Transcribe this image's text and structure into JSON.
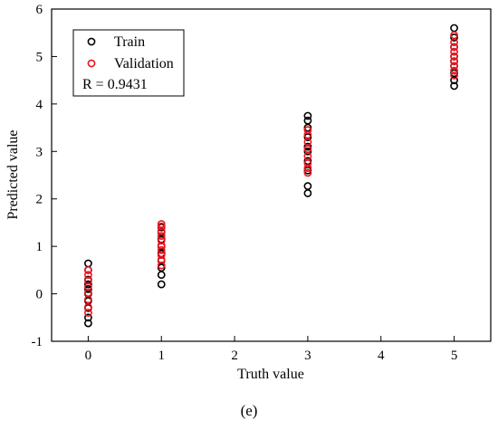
{
  "caption": "(e)",
  "chart_data": {
    "type": "scatter",
    "xlabel": "Truth value",
    "ylabel": "Predicted value",
    "xlim": [
      -0.5,
      5.5
    ],
    "ylim": [
      -1,
      6
    ],
    "xticks": [
      0,
      1,
      2,
      3,
      4,
      5
    ],
    "yticks": [
      -1,
      0,
      1,
      2,
      3,
      4,
      5,
      6
    ],
    "grid": false,
    "legend_position": "top-left",
    "annotation": "R = 0.9431",
    "series": [
      {
        "name": "Train",
        "color": "#000000",
        "marker": "open-circle",
        "points": [
          [
            0,
            -0.62
          ],
          [
            0,
            -0.5
          ],
          [
            0,
            -0.3
          ],
          [
            0,
            -0.15
          ],
          [
            0,
            0.0
          ],
          [
            0,
            0.1
          ],
          [
            0,
            0.2
          ],
          [
            0,
            0.3
          ],
          [
            0,
            0.5
          ],
          [
            0,
            0.64
          ],
          [
            1,
            0.2
          ],
          [
            1,
            0.4
          ],
          [
            1,
            0.55
          ],
          [
            1,
            0.7
          ],
          [
            1,
            0.85
          ],
          [
            1,
            1.0
          ],
          [
            1,
            1.15
          ],
          [
            1,
            1.3
          ],
          [
            1,
            1.4
          ],
          [
            3,
            2.12
          ],
          [
            3,
            2.27
          ],
          [
            3,
            2.6
          ],
          [
            3,
            2.8
          ],
          [
            3,
            3.0
          ],
          [
            3,
            3.1
          ],
          [
            3,
            3.3
          ],
          [
            3,
            3.5
          ],
          [
            3,
            3.65
          ],
          [
            3,
            3.75
          ],
          [
            5,
            4.38
          ],
          [
            5,
            4.5
          ],
          [
            5,
            4.65
          ],
          [
            5,
            4.8
          ],
          [
            5,
            4.9
          ],
          [
            5,
            5.0
          ],
          [
            5,
            5.2
          ],
          [
            5,
            5.4
          ],
          [
            5,
            5.6
          ]
        ]
      },
      {
        "name": "Validation",
        "color": "#e8161e",
        "marker": "open-circle",
        "points": [
          [
            0,
            -0.4
          ],
          [
            0,
            -0.28
          ],
          [
            0,
            -0.12
          ],
          [
            0,
            0.02
          ],
          [
            0,
            0.15
          ],
          [
            0,
            0.28
          ],
          [
            0,
            0.4
          ],
          [
            0,
            0.5
          ],
          [
            1,
            0.6
          ],
          [
            1,
            0.72
          ],
          [
            1,
            0.82
          ],
          [
            1,
            0.92
          ],
          [
            1,
            1.02
          ],
          [
            1,
            1.12
          ],
          [
            1,
            1.22
          ],
          [
            1,
            1.32
          ],
          [
            1,
            1.42
          ],
          [
            1,
            1.47
          ],
          [
            3,
            2.55
          ],
          [
            3,
            2.65
          ],
          [
            3,
            2.75
          ],
          [
            3,
            2.9
          ],
          [
            3,
            3.05
          ],
          [
            3,
            3.2
          ],
          [
            3,
            3.35
          ],
          [
            3,
            3.45
          ],
          [
            5,
            4.6
          ],
          [
            5,
            4.7
          ],
          [
            5,
            4.8
          ],
          [
            5,
            4.9
          ],
          [
            5,
            5.0
          ],
          [
            5,
            5.1
          ],
          [
            5,
            5.2
          ],
          [
            5,
            5.3
          ],
          [
            5,
            5.45
          ]
        ]
      }
    ]
  }
}
